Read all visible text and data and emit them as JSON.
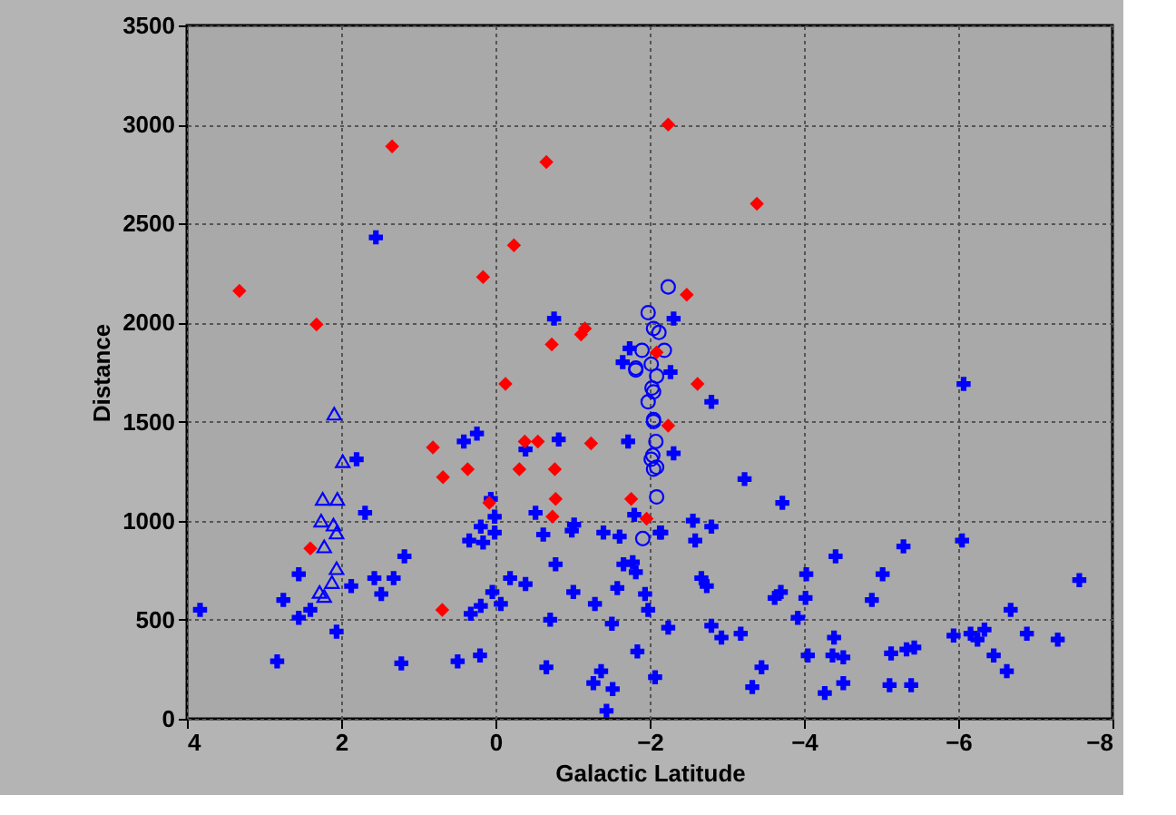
{
  "chart_data": {
    "type": "scatter",
    "xlabel": "Galactic Latitude",
    "ylabel": "Distance",
    "xlim": [
      4,
      -8
    ],
    "xticks": [
      4,
      2,
      0,
      -2,
      -4,
      -6,
      -8
    ],
    "ylim": [
      0,
      3500
    ],
    "yticks": [
      0,
      500,
      1000,
      1500,
      2000,
      2500,
      3000,
      3500
    ],
    "grid": true,
    "series": [
      {
        "color": "#0000ff",
        "marker": "cross",
        "x": [
          1.55,
          -0.76,
          -1.74,
          -1.65,
          -2.31,
          -2.27,
          -6.07,
          -2.8,
          -2.31,
          -3.23,
          -3.72,
          -2.56,
          -2.8,
          -2.15,
          -2.59,
          -6.05,
          -5.29,
          -4.41,
          -4.03,
          -5.02,
          -2.67,
          -2.74,
          -7.57,
          -3.7,
          -3.62,
          -4.02,
          -4.88,
          -3.92,
          -6.68,
          -2.24,
          -2.8,
          -2.93,
          -3.18,
          -4.39,
          -5.94,
          -6.16,
          -6.25,
          -6.34,
          -6.89,
          -7.29,
          -5.43,
          -5.33,
          -5.13,
          -4.05,
          -4.37,
          -4.51,
          -6.46,
          -6.63,
          -3.45,
          -3.33,
          -4.51,
          -4.27,
          -5.11,
          -5.39,
          -2.07,
          0.24,
          0.41,
          -0.39,
          -0.82,
          -1.72,
          1.8,
          1.69,
          0.06,
          0.01,
          0.19,
          0.01,
          0.34,
          0.16,
          -0.52,
          -0.62,
          -1.02,
          -0.99,
          -1.4,
          -1.61,
          -1.8,
          -2.13,
          1.18,
          2.55,
          1.57,
          1.32,
          1.87,
          1.48,
          -0.78,
          -0.19,
          -0.39,
          -1.66,
          -1.78,
          -1.82,
          -1.58,
          -1.01,
          -1.94,
          0.04,
          -0.07,
          -1.29,
          -1.98,
          2.75,
          2.4,
          2.55,
          3.83,
          0.19,
          0.32,
          2.06,
          -0.71,
          -1.51,
          2.83,
          1.22,
          0.49,
          0.2,
          -0.66,
          -1.84,
          -1.37,
          -1.27,
          -1.52,
          -1.44
        ],
        "values": [
          2430,
          2020,
          1870,
          1800,
          2020,
          1750,
          1690,
          1600,
          1340,
          1210,
          1090,
          1000,
          970,
          940,
          900,
          900,
          870,
          820,
          730,
          730,
          710,
          670,
          700,
          640,
          610,
          610,
          600,
          510,
          550,
          460,
          470,
          410,
          430,
          410,
          420,
          430,
          400,
          450,
          430,
          400,
          360,
          350,
          330,
          320,
          320,
          310,
          320,
          240,
          260,
          160,
          180,
          130,
          170,
          170,
          210,
          1440,
          1400,
          1360,
          1410,
          1400,
          1310,
          1040,
          1110,
          1020,
          970,
          940,
          900,
          890,
          1040,
          930,
          980,
          950,
          940,
          920,
          1030,
          940,
          820,
          730,
          710,
          710,
          670,
          630,
          780,
          710,
          680,
          780,
          790,
          740,
          660,
          640,
          630,
          640,
          580,
          580,
          550,
          600,
          550,
          510,
          550,
          570,
          530,
          440,
          500,
          480,
          290,
          280,
          290,
          320,
          260,
          340,
          240,
          180,
          150,
          40
        ]
      },
      {
        "color": "#0000ff",
        "marker": "circle",
        "x": [
          -2.24,
          -1.98,
          -2.05,
          -2.12,
          -1.9,
          -2.19,
          -2.02,
          -1.82,
          -2.09,
          -1.82,
          -2.03,
          -2.05,
          -1.98,
          -2.05,
          -2.05,
          -2.08,
          -2.04,
          -2.02,
          -2.09,
          -2.05,
          -2.09,
          -1.91
        ],
        "values": [
          2180,
          2050,
          1970,
          1950,
          1860,
          1860,
          1790,
          1770,
          1730,
          1760,
          1670,
          1650,
          1600,
          1510,
          1500,
          1400,
          1330,
          1310,
          1270,
          1260,
          1120,
          910
        ]
      },
      {
        "color": "#0000ff",
        "marker": "triangle",
        "x": [
          2.09,
          1.98,
          2.24,
          2.05,
          2.26,
          2.1,
          2.06,
          2.22,
          2.06,
          2.12,
          2.28,
          2.22
        ],
        "values": [
          1540,
          1300,
          1110,
          1110,
          1000,
          980,
          940,
          870,
          760,
          690,
          640,
          620
        ]
      },
      {
        "color": "#ff0000",
        "marker": "diamond",
        "x": [
          3.32,
          1.34,
          -0.66,
          -0.24,
          0.16,
          2.32,
          -1.16,
          -1.11,
          -0.73,
          -2.09,
          -0.13,
          -2.24,
          -3.39,
          -2.48,
          -2.62,
          -2.24,
          -1.96,
          0.81,
          0.68,
          0.36,
          -0.38,
          -0.55,
          -0.31,
          -0.77,
          -1.24,
          -0.78,
          -0.74,
          0.08,
          -1.76,
          2.4,
          0.69
        ],
        "values": [
          2160,
          2890,
          2810,
          2390,
          2230,
          1990,
          1970,
          1940,
          1890,
          1850,
          1690,
          3000,
          2600,
          2140,
          1690,
          1480,
          1010,
          1370,
          1220,
          1260,
          1400,
          1400,
          1260,
          1260,
          1390,
          1110,
          1020,
          1090,
          1110,
          860,
          550
        ]
      }
    ]
  }
}
